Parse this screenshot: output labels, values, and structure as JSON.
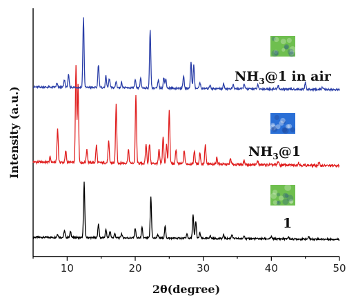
{
  "chart_data": {
    "type": "line",
    "xlabel_main": "2θ",
    "xlabel_unit": "(degree)",
    "ylabel": "Intensity (a.u.)",
    "xlim": [
      5,
      50
    ],
    "xticks": [
      10,
      20,
      30,
      40,
      50
    ],
    "grid": false,
    "legend": "inline labels at right",
    "series": [
      {
        "name": "1",
        "label_parts": [
          "1",
          "",
          ""
        ],
        "color": "#000000",
        "thumb_color": "#6fbf4f",
        "baseline": 0.06,
        "peaks": [
          [
            8.6,
            0.05
          ],
          [
            9.6,
            0.1
          ],
          [
            10.5,
            0.09
          ],
          [
            12.5,
            0.8
          ],
          [
            14.6,
            0.2
          ],
          [
            15.7,
            0.12
          ],
          [
            16.3,
            0.1
          ],
          [
            17.0,
            0.06
          ],
          [
            18.0,
            0.06
          ],
          [
            20.0,
            0.14
          ],
          [
            21.0,
            0.15
          ],
          [
            22.3,
            0.6
          ],
          [
            23.3,
            0.05
          ],
          [
            24.4,
            0.17
          ],
          [
            27.6,
            0.06
          ],
          [
            28.5,
            0.34
          ],
          [
            28.9,
            0.25
          ],
          [
            29.5,
            0.08
          ],
          [
            31.0,
            0.04
          ],
          [
            33.0,
            0.05
          ],
          [
            34.2,
            0.06
          ],
          [
            36.0,
            0.05
          ],
          [
            40.0,
            0.03
          ],
          [
            42.5,
            0.03
          ],
          [
            45.5,
            0.03
          ]
        ]
      },
      {
        "name": "NH3@1",
        "label_parts": [
          "NH",
          "3",
          "@1"
        ],
        "color": "#e02020",
        "thumb_color": "#2a6fd6",
        "baseline": 0.08,
        "peaks": [
          [
            7.5,
            0.05
          ],
          [
            8.6,
            0.35
          ],
          [
            9.8,
            0.12
          ],
          [
            11.3,
            1.0
          ],
          [
            11.6,
            0.8
          ],
          [
            12.9,
            0.14
          ],
          [
            14.3,
            0.18
          ],
          [
            16.1,
            0.22
          ],
          [
            17.2,
            0.6
          ],
          [
            19.0,
            0.14
          ],
          [
            20.1,
            0.7
          ],
          [
            21.6,
            0.2
          ],
          [
            22.1,
            0.2
          ],
          [
            23.5,
            0.14
          ],
          [
            24.1,
            0.28
          ],
          [
            24.6,
            0.2
          ],
          [
            25.0,
            0.55
          ],
          [
            26.0,
            0.15
          ],
          [
            27.2,
            0.14
          ],
          [
            28.7,
            0.14
          ],
          [
            29.5,
            0.12
          ],
          [
            30.3,
            0.2
          ],
          [
            32.0,
            0.07
          ],
          [
            34.0,
            0.06
          ],
          [
            36.0,
            0.04
          ],
          [
            38.0,
            0.04
          ],
          [
            41.0,
            0.04
          ],
          [
            44.0,
            0.03
          ],
          [
            47.0,
            0.03
          ]
        ]
      },
      {
        "name": "NH3@1 in air",
        "label_parts": [
          "NH",
          "3",
          "@1 in air"
        ],
        "color": "#2b3fa8",
        "thumb_color": "#6fbf4f",
        "baseline": 0.07,
        "peaks": [
          [
            8.5,
            0.05
          ],
          [
            9.6,
            0.1
          ],
          [
            10.2,
            0.16
          ],
          [
            12.4,
            0.9
          ],
          [
            14.6,
            0.3
          ],
          [
            15.7,
            0.15
          ],
          [
            16.2,
            0.12
          ],
          [
            17.2,
            0.08
          ],
          [
            18.0,
            0.07
          ],
          [
            20.0,
            0.1
          ],
          [
            20.8,
            0.12
          ],
          [
            22.2,
            0.75
          ],
          [
            23.4,
            0.1
          ],
          [
            24.2,
            0.14
          ],
          [
            24.5,
            0.12
          ],
          [
            27.1,
            0.16
          ],
          [
            28.2,
            0.34
          ],
          [
            28.6,
            0.3
          ],
          [
            29.5,
            0.08
          ],
          [
            31.0,
            0.05
          ],
          [
            33.0,
            0.06
          ],
          [
            34.4,
            0.05
          ],
          [
            36.0,
            0.07
          ],
          [
            38.0,
            0.05
          ],
          [
            41.0,
            0.05
          ],
          [
            45.0,
            0.09
          ],
          [
            47.5,
            0.03
          ]
        ]
      }
    ]
  }
}
